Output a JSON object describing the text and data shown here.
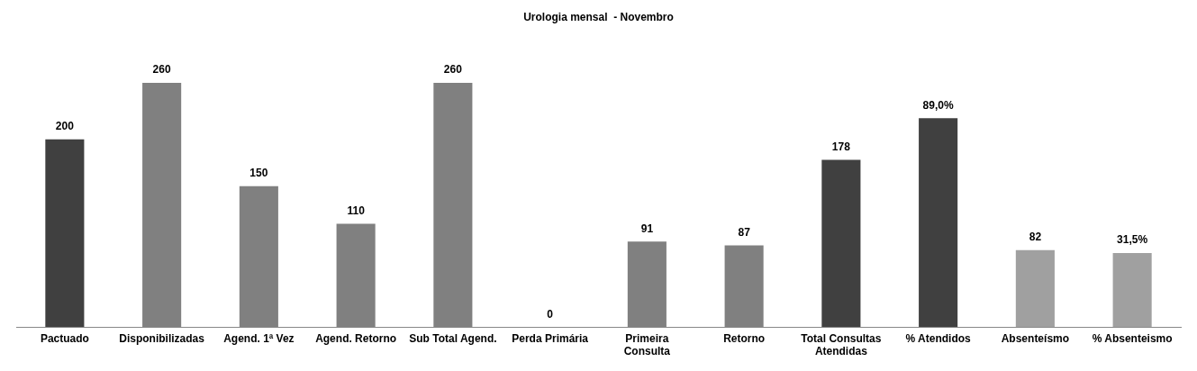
{
  "chart_data": {
    "type": "bar",
    "title": "Urologia mensal  - Novembro",
    "categories": [
      "Pactuado",
      "Disponibilizadas",
      "Agend. 1ª Vez",
      "Agend. Retorno",
      "Sub Total Agend.",
      "Perda Primária",
      "Primeira Consulta",
      "Retorno",
      "Total Consultas Atendidas",
      "% Atendidos",
      "Absenteísmo",
      "% Absenteismo"
    ],
    "series": [
      {
        "values": [
          200,
          260,
          150,
          110,
          260,
          0,
          91,
          87,
          178,
          null,
          82,
          null
        ],
        "colors": [
          "#404040",
          "#808080",
          "#808080",
          "#808080",
          "#808080",
          "#808080",
          "#808080",
          "#808080",
          "#404040",
          "#404040",
          "#a0a0a0",
          "#a0a0a0"
        ],
        "value_labels": [
          "200",
          "260",
          "150",
          "110",
          "260",
          "0",
          "91",
          "87",
          "178",
          null,
          "82",
          null
        ]
      },
      {
        "axis": "y2",
        "values": [
          null,
          null,
          null,
          null,
          null,
          null,
          null,
          null,
          null,
          89.0,
          null,
          31.5
        ],
        "colors": [
          "#404040",
          "#808080",
          "#808080",
          "#808080",
          "#808080",
          "#808080",
          "#808080",
          "#808080",
          "#404040",
          "#404040",
          "#a0a0a0",
          "#a0a0a0"
        ],
        "value_labels": [
          null,
          null,
          null,
          null,
          null,
          null,
          null,
          null,
          null,
          "89,0%",
          null,
          "31,5%"
        ]
      }
    ]
  }
}
